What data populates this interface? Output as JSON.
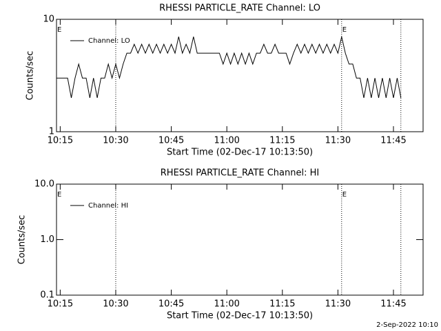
{
  "chart_data": [
    {
      "type": "line",
      "title": "RHESSI PARTICLE_RATE Channel: LO",
      "xlabel": "Start Time (02-Dec-17 10:13:50)",
      "ylabel": "Counts/sec",
      "x": [
        "10:14",
        "10:15",
        "10:16",
        "10:17",
        "10:18",
        "10:19",
        "10:20",
        "10:21",
        "10:22",
        "10:23",
        "10:24",
        "10:25",
        "10:26",
        "10:27",
        "10:28",
        "10:29",
        "10:30",
        "10:31",
        "10:32",
        "10:33",
        "10:34",
        "10:35",
        "10:36",
        "10:37",
        "10:38",
        "10:39",
        "10:40",
        "10:41",
        "10:42",
        "10:43",
        "10:44",
        "10:45",
        "10:46",
        "10:47",
        "10:48",
        "10:49",
        "10:50",
        "10:51",
        "10:52",
        "10:53",
        "10:54",
        "10:55",
        "10:56",
        "10:57",
        "10:58",
        "10:59",
        "11:00",
        "11:01",
        "11:02",
        "11:03",
        "11:04",
        "11:05",
        "11:06",
        "11:07",
        "11:08",
        "11:09",
        "11:10",
        "11:11",
        "11:12",
        "11:13",
        "11:14",
        "11:15",
        "11:16",
        "11:17",
        "11:18",
        "11:19",
        "11:20",
        "11:21",
        "11:22",
        "11:23",
        "11:24",
        "11:25",
        "11:26",
        "11:27",
        "11:28",
        "11:29",
        "11:30",
        "11:31",
        "11:32",
        "11:33",
        "11:34",
        "11:35",
        "11:36",
        "11:37",
        "11:38",
        "11:39",
        "11:40",
        "11:41",
        "11:42",
        "11:43",
        "11:44",
        "11:45",
        "11:46",
        "11:47"
      ],
      "series": [
        {
          "name": "Channel: LO",
          "color": "#000000",
          "values": [
            3,
            3,
            3,
            3,
            2,
            3,
            4,
            3,
            3,
            2,
            3,
            2,
            3,
            3,
            4,
            3,
            4,
            3,
            4,
            5,
            5,
            6,
            5,
            6,
            5,
            6,
            5,
            6,
            5,
            6,
            5,
            6,
            5,
            7,
            5,
            6,
            5,
            7,
            5,
            5,
            5,
            5,
            5,
            5,
            5,
            4,
            5,
            4,
            5,
            4,
            5,
            4,
            5,
            4,
            5,
            5,
            6,
            5,
            5,
            6,
            5,
            5,
            5,
            4,
            5,
            6,
            5,
            6,
            5,
            6,
            5,
            6,
            5,
            6,
            5,
            6,
            5,
            7,
            5,
            4,
            4,
            3,
            3,
            2,
            3,
            2,
            3,
            2,
            3,
            2,
            3,
            2,
            3,
            2
          ]
        }
      ],
      "xlim": [
        "10:14",
        "11:53"
      ],
      "xticks": [
        "10:15",
        "10:30",
        "10:45",
        "11:00",
        "11:15",
        "11:30",
        "11:45"
      ],
      "ylim": [
        1,
        10
      ],
      "yticks": [
        1,
        10
      ],
      "log_y": true,
      "legend": "upper left",
      "vlines": [
        "10:30",
        "11:31",
        "11:47"
      ],
      "annotations": [
        {
          "text": "E",
          "x": "10:14"
        },
        {
          "text": "E",
          "x": "11:31"
        }
      ]
    },
    {
      "type": "line",
      "title": "RHESSI PARTICLE_RATE Channel: HI",
      "xlabel": "Start Time (02-Dec-17 10:13:50)",
      "ylabel": "Counts/sec",
      "x": [],
      "series": [
        {
          "name": "Channel: HI",
          "color": "#000000",
          "values": []
        }
      ],
      "xlim": [
        "10:14",
        "11:53"
      ],
      "xticks": [
        "10:15",
        "10:30",
        "10:45",
        "11:00",
        "11:15",
        "11:30",
        "11:45"
      ],
      "ylim": [
        0.1,
        10
      ],
      "yticks": [
        0.1,
        {
          "value": 1,
          "label": "1.0"
        },
        {
          "value": 10,
          "label": "10.0"
        }
      ],
      "log_y": true,
      "legend": "upper left",
      "vlines": [
        "10:30",
        "11:31",
        "11:47"
      ],
      "annotations": [
        {
          "text": "E",
          "x": "10:14"
        },
        {
          "text": "E",
          "x": "11:31"
        }
      ]
    }
  ],
  "footer": "2-Sep-2022 10:10"
}
